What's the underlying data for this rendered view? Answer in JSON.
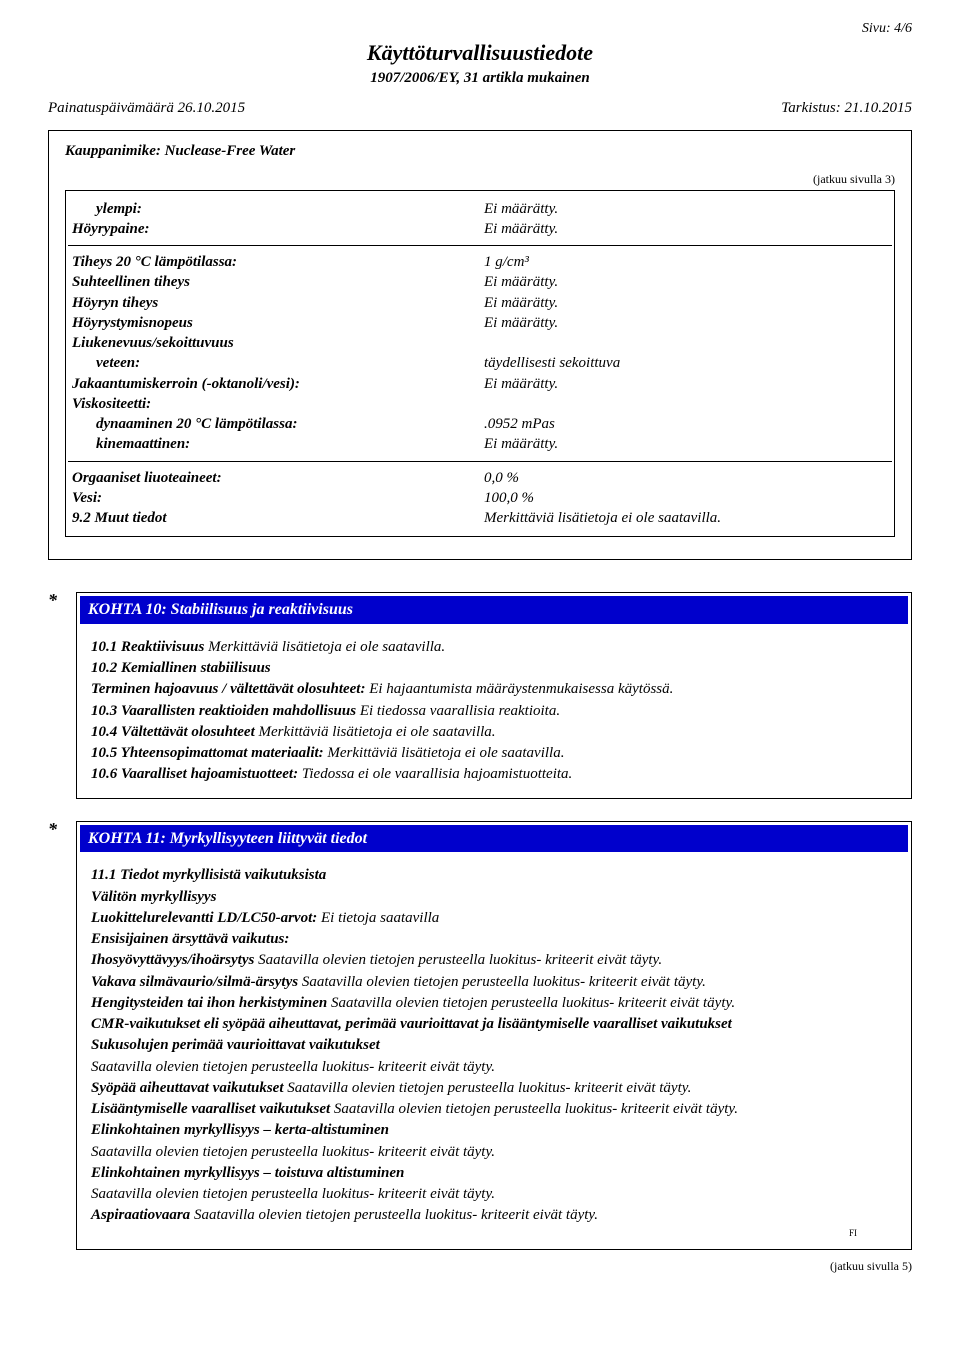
{
  "page_indicator": "Sivu: 4/6",
  "doc_title": "Käyttöturvallisuustiedote",
  "doc_subtitle": "1907/2006/EY, 31 artikla mukainen",
  "print_date_label": "Painatuspäivämäärä 26.10.2015",
  "revision_label": "Tarkistus: 21.10.2015",
  "trade_name": "Kauppanimike: Nuclease-Free Water",
  "continued_from": "(jatkuu sivulla 3)",
  "props": {
    "rows_a": [
      {
        "label": "ylempi:",
        "val": "Ei määrätty.",
        "sub": true
      },
      {
        "label": "Höyrypaine:",
        "val": "Ei määrätty."
      }
    ],
    "rows_b": [
      {
        "label": "Tiheys 20 °C lämpötilassa:",
        "val": "1 g/cm³"
      },
      {
        "label": "Suhteellinen tiheys",
        "val": "Ei määrätty."
      },
      {
        "label": "Höyryn tiheys",
        "val": "Ei määrätty."
      },
      {
        "label": "Höyrystymisnopeus",
        "val": "Ei määrätty."
      },
      {
        "label": "Liukenevuus/sekoittuvuus",
        "val": ""
      },
      {
        "label": "veteen:",
        "val": "täydellisesti sekoittuva",
        "sub": true
      },
      {
        "label": "Jakaantumiskerroin (-oktanoli/vesi):",
        "val": "Ei määrätty."
      },
      {
        "label": "Viskositeetti:",
        "val": ""
      },
      {
        "label": "dynaaminen 20 °C lämpötilassa:",
        "val": ".0952 mPas",
        "sub": true
      },
      {
        "label": "kinemaattinen:",
        "val": "Ei määrätty.",
        "sub": true
      }
    ],
    "rows_c": [
      {
        "label": "Orgaaniset liuoteaineet:",
        "val": "0,0 %"
      },
      {
        "label": "Vesi:",
        "val": "100,0 %"
      },
      {
        "label": "9.2 Muut tiedot",
        "val": "Merkittäviä lisätietoja ei ole saatavilla."
      }
    ]
  },
  "section10": {
    "title": "KOHTA 10: Stabiilisuus ja reaktiivisuus",
    "l1b": "10.1 Reaktiivisuus ",
    "l1": "Merkittäviä lisätietoja ei ole saatavilla.",
    "l2b": "10.2 Kemiallinen stabiilisuus",
    "l3b": "Terminen hajoavuus / vältettävät olosuhteet: ",
    "l3": "Ei hajaantumista määräystenmukaisessa käytössä.",
    "l4b": "10.3 Vaarallisten reaktioiden mahdollisuus ",
    "l4": "Ei tiedossa vaarallisia reaktioita.",
    "l5b": "10.4 Vältettävät olosuhteet ",
    "l5": "Merkittäviä lisätietoja ei ole saatavilla.",
    "l6b": "10.5 Yhteensopimattomat materiaalit: ",
    "l6": "Merkittäviä lisätietoja ei ole saatavilla.",
    "l7b": "10.6 Vaaralliset hajoamistuotteet: ",
    "l7": "Tiedossa ei ole vaarallisia hajoamistuotteita."
  },
  "section11": {
    "title": "KOHTA 11: Myrkyllisyyteen liittyvät tiedot",
    "l1": "11.1 Tiedot myrkyllisistä vaikutuksista",
    "l2": "Välitön myrkyllisyys",
    "l3b": "Luokittelurelevantti LD/LC50-arvot: ",
    "l3": "Ei tietoja saatavilla",
    "l4": "Ensisijainen ärsyttävä vaikutus:",
    "l5b": "Ihosyövyttävyys/ihoärsytys ",
    "l5": "Saatavilla olevien tietojen perusteella luokitus- kriteerit eivät täyty.",
    "l6b": "Vakava silmävaurio/silmä-ärsytys ",
    "l6": "Saatavilla olevien tietojen perusteella luokitus- kriteerit eivät täyty.",
    "l7b": "Hengitysteiden tai ihon herkistyminen ",
    "l7": "Saatavilla olevien tietojen perusteella luokitus- kriteerit eivät täyty.",
    "l8": "CMR-vaikutukset eli syöpää aiheuttavat, perimää vaurioittavat ja lisääntymiselle vaaralliset vaikutukset",
    "l9": "Sukusolujen perimää vaurioittavat vaikutukset",
    "l10": "Saatavilla olevien tietojen perusteella luokitus- kriteerit eivät täyty.",
    "l11b": "Syöpää aiheuttavat vaikutukset ",
    "l11": "Saatavilla olevien tietojen perusteella luokitus- kriteerit eivät täyty.",
    "l12b": "Lisääntymiselle vaaralliset vaikutukset ",
    "l12": "Saatavilla olevien tietojen perusteella luokitus- kriteerit eivät täyty.",
    "l13": "Elinkohtainen myrkyllisyys – kerta-altistuminen",
    "l14": "Saatavilla olevien tietojen perusteella luokitus- kriteerit eivät täyty.",
    "l15": "Elinkohtainen myrkyllisyys – toistuva altistuminen",
    "l16": "Saatavilla olevien tietojen perusteella luokitus- kriteerit eivät täyty.",
    "l17b": "Aspiraatiovaara ",
    "l17": "Saatavilla olevien tietojen perusteella luokitus- kriteerit eivät täyty."
  },
  "fi": "FI",
  "continued_next": "(jatkuu sivulla 5)",
  "colors": {
    "header_bg": "#0000cc",
    "header_fg": "#ffffff",
    "text": "#000000",
    "page_bg": "#ffffff"
  }
}
